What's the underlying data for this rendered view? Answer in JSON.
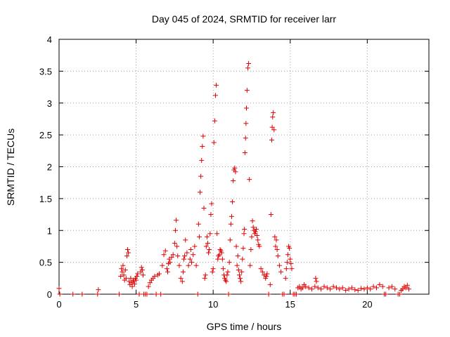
{
  "chart_data": {
    "type": "scatter",
    "title": "Day 045 of 2024, SRMTID for receiver larr",
    "xlabel": "GPS time / hours",
    "ylabel": "SRMTID / TECUs",
    "xlim": [
      0,
      24
    ],
    "ylim": [
      0,
      4
    ],
    "xticks": [
      0,
      5,
      10,
      15,
      20
    ],
    "yticks": [
      0,
      0.5,
      1,
      1.5,
      2,
      2.5,
      3,
      3.5,
      4
    ],
    "ytick_labels": [
      "0",
      "0.5",
      "1",
      "1.5",
      "2",
      "2.5",
      "3",
      "3.5",
      "4"
    ],
    "grid": true,
    "marker": "+",
    "color": "#e00000",
    "series": [
      {
        "name": "SRMTID",
        "x": [
          0.0,
          0.05,
          0.9,
          1.5,
          2.5,
          2.55,
          3.9,
          4.0,
          4.05,
          4.1,
          4.15,
          4.2,
          4.25,
          4.3,
          4.35,
          4.4,
          4.45,
          4.5,
          4.55,
          4.6,
          4.65,
          4.7,
          4.75,
          4.8,
          4.85,
          4.9,
          4.95,
          5.0,
          5.05,
          5.1,
          5.2,
          5.3,
          5.35,
          5.4,
          5.45,
          5.5,
          5.6,
          5.7,
          5.8,
          5.9,
          6.0,
          6.1,
          6.2,
          6.3,
          6.4,
          6.5,
          6.6,
          6.7,
          6.8,
          6.9,
          7.0,
          7.05,
          7.1,
          7.15,
          7.2,
          7.3,
          7.4,
          7.5,
          7.55,
          7.6,
          7.65,
          7.7,
          7.8,
          7.9,
          8.0,
          8.05,
          8.1,
          8.15,
          8.2,
          8.3,
          8.4,
          8.5,
          8.55,
          8.6,
          8.7,
          8.8,
          8.9,
          9.0,
          9.05,
          9.1,
          9.15,
          9.2,
          9.25,
          9.3,
          9.35,
          9.4,
          9.45,
          9.5,
          9.55,
          9.6,
          9.65,
          9.7,
          9.75,
          9.8,
          9.85,
          9.9,
          9.95,
          10.0,
          10.05,
          10.1,
          10.15,
          10.2,
          10.25,
          10.3,
          10.35,
          10.4,
          10.45,
          10.5,
          10.55,
          10.6,
          10.65,
          10.7,
          10.75,
          10.8,
          10.85,
          10.9,
          10.95,
          11.0,
          11.05,
          11.1,
          11.15,
          11.2,
          11.25,
          11.3,
          11.35,
          11.4,
          11.45,
          11.5,
          11.55,
          11.6,
          11.65,
          11.7,
          11.75,
          11.8,
          11.85,
          11.9,
          11.95,
          12.0,
          12.03,
          12.06,
          12.1,
          12.13,
          12.16,
          12.2,
          12.25,
          12.3,
          12.35,
          12.4,
          12.45,
          12.5,
          12.55,
          12.6,
          12.65,
          12.7,
          12.75,
          12.8,
          12.85,
          12.9,
          12.95,
          13.0,
          13.1,
          13.2,
          13.3,
          13.4,
          13.45,
          13.5,
          13.6,
          13.7,
          13.75,
          13.8,
          13.83,
          13.86,
          13.9,
          13.95,
          14.0,
          14.05,
          14.1,
          14.15,
          14.2,
          14.3,
          14.4,
          14.5,
          14.6,
          14.7,
          14.75,
          14.8,
          14.85,
          14.9,
          14.95,
          15.0,
          15.05,
          15.1,
          15.2,
          15.3,
          15.4,
          15.5,
          15.6,
          15.7,
          15.8,
          15.9,
          16.0,
          16.2,
          16.4,
          16.6,
          16.65,
          16.7,
          16.8,
          17.0,
          17.2,
          17.4,
          17.6,
          17.8,
          18.0,
          18.2,
          18.4,
          18.6,
          18.8,
          19.0,
          19.2,
          19.4,
          19.6,
          19.8,
          20.0,
          20.2,
          20.4,
          20.6,
          20.8,
          21.0,
          21.1,
          21.2,
          21.4,
          21.6,
          21.8,
          22.0,
          22.1,
          22.2,
          22.3,
          22.4,
          22.5,
          22.6,
          22.7
        ],
        "y": [
          0.09,
          0.0,
          0.0,
          0.0,
          0.0,
          0.07,
          0.0,
          0.28,
          0.4,
          0.35,
          0.45,
          0.3,
          0.22,
          0.38,
          0.25,
          0.6,
          0.7,
          0.65,
          0.2,
          0.15,
          0.25,
          0.18,
          0.12,
          0.2,
          0.22,
          0.16,
          0.25,
          0.22,
          0.28,
          0.32,
          0.0,
          0.35,
          0.42,
          0.38,
          0.3,
          0.0,
          0.0,
          0.0,
          0.12,
          0.18,
          0.22,
          0.25,
          0.28,
          0.0,
          0.3,
          0.32,
          0.0,
          0.45,
          0.62,
          0.68,
          0.4,
          0.35,
          0.48,
          0.55,
          0.5,
          0.58,
          0.62,
          0.8,
          1.0,
          1.16,
          0.75,
          0.6,
          0.45,
          0.25,
          0.2,
          0.35,
          0.55,
          0.6,
          0.85,
          0.65,
          0.45,
          0.55,
          0.7,
          0.5,
          0.62,
          0.75,
          0.45,
          0.0,
          1.1,
          0.9,
          1.6,
          1.85,
          2.1,
          2.32,
          2.48,
          1.35,
          0.25,
          0.3,
          0.75,
          0.9,
          0.8,
          0.65,
          0.7,
          0.95,
          1.25,
          1.42,
          0.35,
          0.4,
          2.38,
          2.72,
          3.12,
          3.28,
          0.95,
          0.55,
          0.6,
          0.62,
          0.7,
          0.68,
          0.65,
          0.55,
          0.4,
          0.3,
          0.25,
          0.22,
          0.2,
          0.3,
          0.35,
          0.0,
          0.5,
          0.85,
          1.1,
          1.22,
          1.45,
          1.78,
          1.95,
          1.98,
          1.92,
          0.75,
          0.45,
          0.6,
          0.38,
          0.3,
          0.25,
          0.2,
          0.35,
          0.55,
          0.72,
          0.95,
          1.02,
          2.22,
          2.45,
          2.68,
          2.92,
          3.2,
          3.55,
          3.62,
          1.8,
          0.45,
          0.7,
          0.9,
          1.15,
          1.05,
          1.0,
          0.95,
          0.98,
          1.02,
          0.92,
          0.85,
          0.78,
          0.75,
          0.4,
          0.35,
          0.3,
          0.25,
          0.28,
          0.32,
          0.0,
          0.15,
          1.25,
          2.42,
          2.62,
          2.78,
          2.85,
          2.58,
          0.9,
          0.75,
          0.85,
          0.7,
          0.6,
          0.45,
          0.35,
          0.0,
          0.0,
          0.25,
          0.4,
          0.5,
          0.62,
          0.75,
          0.72,
          0.55,
          0.48,
          0.4,
          0.0,
          0.0,
          0.0,
          0.1,
          0.12,
          0.08,
          0.1,
          0.15,
          0.12,
          0.1,
          0.08,
          0.12,
          0.25,
          0.2,
          0.1,
          0.08,
          0.12,
          0.1,
          0.08,
          0.12,
          0.1,
          0.08,
          0.1,
          0.06,
          0.08,
          0.1,
          0.07,
          0.06,
          0.09,
          0.08,
          0.1,
          0.08,
          0.12,
          0.1,
          0.15,
          0.12,
          0.0,
          0.0,
          0.1,
          0.12,
          0.08,
          0.0,
          0.0,
          0.06,
          0.08,
          0.12,
          0.1,
          0.14,
          0.08
        ]
      }
    ]
  }
}
